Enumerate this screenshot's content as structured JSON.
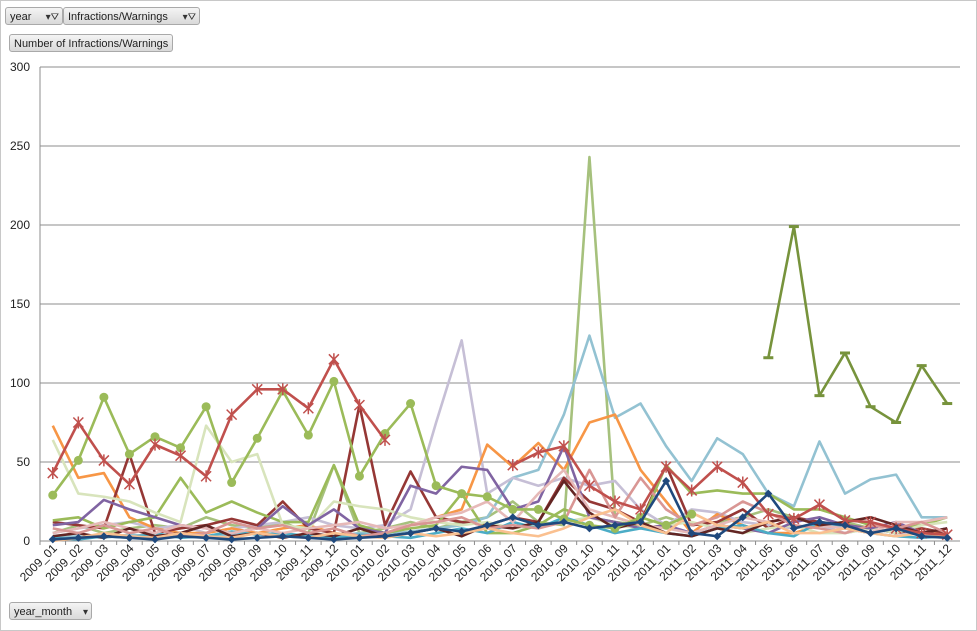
{
  "filters": {
    "year_label": "year",
    "series_field_label": "Infractions/Warnings",
    "measure_label": "Number of Infractions/Warnings",
    "axis_field_label": "year_month"
  },
  "chart_data": {
    "type": "line",
    "title": "",
    "xlabel": "",
    "ylabel": "",
    "ylim": [
      0,
      300
    ],
    "yticks": [
      0,
      50,
      100,
      150,
      200,
      250,
      300
    ],
    "grid": true,
    "categories": [
      "2009_01",
      "2009_02",
      "2009_03",
      "2009_04",
      "2009_05",
      "2009_06",
      "2009_07",
      "2009_08",
      "2009_09",
      "2009_10",
      "2009_11",
      "2009_12",
      "2010_01",
      "2010_02",
      "2010_03",
      "2010_04",
      "2010_05",
      "2010_06",
      "2010_07",
      "2010_08",
      "2010_09",
      "2010_10",
      "2010_11",
      "2010_12",
      "2011_01",
      "2011_02",
      "2011_03",
      "2011_04",
      "2011_05",
      "2011_06",
      "2011_07",
      "2011_08",
      "2011_09",
      "2011_10",
      "2011_11",
      "2011_12"
    ],
    "series": [
      {
        "color": "#9bbb59",
        "marker": "circle",
        "values": [
          29,
          51,
          91,
          55,
          66,
          59,
          85,
          37,
          65,
          95,
          67,
          101,
          41,
          68,
          87,
          35,
          30,
          28,
          20,
          20,
          14,
          10,
          8,
          15,
          10,
          17,
          null,
          null,
          null,
          null,
          null,
          null,
          null,
          null,
          null,
          null
        ]
      },
      {
        "color": "#c0504d",
        "marker": "star",
        "values": [
          43,
          75,
          51,
          36,
          61,
          54,
          41,
          80,
          96,
          96,
          84,
          115,
          86,
          64,
          null,
          null,
          null,
          null,
          null,
          null,
          null,
          null,
          null,
          null,
          null,
          null,
          null,
          null,
          null,
          null,
          null,
          null,
          null,
          null,
          null,
          null
        ]
      },
      {
        "color": "#c0504d",
        "marker": "star",
        "values": [
          null,
          null,
          null,
          null,
          null,
          null,
          null,
          null,
          null,
          null,
          null,
          null,
          null,
          null,
          null,
          null,
          null,
          null,
          48,
          56,
          60,
          35,
          25,
          20,
          47,
          32,
          47,
          37,
          17,
          14,
          23,
          13,
          12,
          8,
          5,
          4
        ]
      },
      {
        "color": "#77933c",
        "marker": "dash",
        "values": [
          null,
          null,
          null,
          null,
          null,
          null,
          null,
          null,
          null,
          null,
          null,
          null,
          null,
          null,
          null,
          null,
          null,
          null,
          null,
          null,
          null,
          null,
          null,
          null,
          null,
          null,
          null,
          null,
          116,
          199,
          92,
          119,
          85,
          75,
          111,
          87
        ]
      },
      {
        "color": "#a6c17d",
        "marker": "none",
        "values": [
          5,
          10,
          5,
          8,
          10,
          8,
          15,
          10,
          8,
          12,
          5,
          48,
          5,
          8,
          12,
          8,
          12,
          15,
          25,
          12,
          10,
          243,
          15,
          10,
          15,
          10,
          12,
          15,
          20,
          15,
          10,
          12,
          8,
          5,
          8,
          5
        ]
      },
      {
        "color": "#93c2d2",
        "marker": "none",
        "values": [
          2,
          3,
          2,
          4,
          3,
          5,
          3,
          4,
          5,
          3,
          4,
          3,
          5,
          4,
          6,
          8,
          10,
          15,
          40,
          45,
          80,
          130,
          78,
          87,
          60,
          38,
          65,
          55,
          30,
          22,
          63,
          30,
          39,
          42,
          15,
          15
        ]
      },
      {
        "color": "#c6bfd6",
        "marker": "none",
        "values": [
          5,
          8,
          10,
          12,
          8,
          10,
          5,
          8,
          10,
          12,
          15,
          10,
          8,
          10,
          20,
          75,
          127,
          30,
          40,
          35,
          40,
          35,
          38,
          20,
          10,
          20,
          18,
          12,
          10,
          8,
          10,
          5,
          8,
          5,
          5,
          8
        ]
      },
      {
        "color": "#f79646",
        "marker": "none",
        "values": [
          73,
          40,
          43,
          15,
          8,
          5,
          5,
          8,
          5,
          8,
          10,
          5,
          2,
          5,
          10,
          15,
          20,
          61,
          47,
          62,
          45,
          75,
          80,
          45,
          25,
          5,
          17,
          10,
          5,
          5,
          10,
          8,
          5,
          8,
          5,
          5
        ]
      },
      {
        "color": "#953735",
        "marker": "none",
        "values": [
          12,
          10,
          8,
          55,
          5,
          8,
          10,
          14,
          10,
          25,
          8,
          5,
          86,
          10,
          44,
          15,
          12,
          10,
          15,
          12,
          40,
          25,
          20,
          12,
          48,
          10,
          12,
          20,
          8,
          15,
          12,
          10,
          8,
          5,
          8,
          5
        ]
      },
      {
        "color": "#9bbb59",
        "marker": "none",
        "values": [
          13,
          15,
          8,
          12,
          15,
          40,
          18,
          25,
          18,
          12,
          12,
          48,
          10,
          5,
          8,
          10,
          30,
          5,
          5,
          10,
          20,
          15,
          12,
          10,
          48,
          30,
          32,
          30,
          30,
          20,
          20,
          15,
          10,
          8,
          10,
          15
        ]
      },
      {
        "color": "#d8e4bc",
        "marker": "none",
        "values": [
          64,
          30,
          28,
          25,
          18,
          12,
          73,
          50,
          55,
          10,
          8,
          25,
          22,
          20,
          15,
          12,
          10,
          12,
          8,
          10,
          12,
          15,
          10,
          8,
          10,
          12,
          8,
          5,
          8,
          10,
          5,
          5,
          8,
          5,
          10,
          12
        ]
      },
      {
        "color": "#8064a2",
        "marker": "none",
        "values": [
          10,
          12,
          26,
          20,
          15,
          10,
          8,
          5,
          8,
          22,
          10,
          20,
          8,
          5,
          35,
          30,
          47,
          45,
          20,
          25,
          60,
          15,
          12,
          8,
          10,
          5,
          10,
          8,
          5,
          12,
          15,
          10,
          8,
          12,
          5,
          8
        ]
      },
      {
        "color": "#1f497d",
        "marker": "diamond",
        "values": [
          1,
          2,
          3,
          2,
          1,
          3,
          2,
          1,
          2,
          3,
          2,
          1,
          2,
          3,
          5,
          8,
          6,
          10,
          15,
          10,
          12,
          8,
          10,
          12,
          38,
          5,
          3,
          15,
          30,
          8,
          12,
          10,
          5,
          8,
          3,
          2
        ]
      },
      {
        "color": "#4bacc6",
        "marker": "none",
        "values": [
          2,
          1,
          3,
          2,
          5,
          2,
          3,
          6,
          4,
          5,
          3,
          2,
          4,
          3,
          2,
          5,
          8,
          5,
          12,
          8,
          15,
          10,
          5,
          8,
          5,
          3,
          8,
          10,
          5,
          3,
          12,
          8,
          5,
          3,
          2,
          3
        ]
      },
      {
        "color": "#e6b9b8",
        "marker": "none",
        "values": [
          5,
          8,
          12,
          8,
          5,
          10,
          8,
          5,
          8,
          5,
          8,
          10,
          12,
          8,
          10,
          15,
          18,
          25,
          12,
          30,
          45,
          20,
          15,
          10,
          8,
          5,
          10,
          15,
          12,
          15,
          10,
          8,
          5,
          12,
          12,
          15
        ]
      },
      {
        "color": "#632523",
        "marker": "none",
        "values": [
          3,
          5,
          2,
          8,
          3,
          5,
          10,
          3,
          5,
          2,
          5,
          3,
          8,
          3,
          5,
          8,
          3,
          10,
          8,
          12,
          38,
          18,
          8,
          12,
          5,
          3,
          8,
          5,
          12,
          15,
          10,
          12,
          15,
          10,
          5,
          8
        ]
      },
      {
        "color": "#d99694",
        "marker": "none",
        "values": [
          8,
          5,
          10,
          5,
          8,
          3,
          5,
          12,
          8,
          10,
          5,
          8,
          3,
          5,
          10,
          12,
          15,
          8,
          10,
          8,
          12,
          45,
          15,
          40,
          20,
          10,
          15,
          25,
          18,
          10,
          8,
          5,
          10,
          8,
          12,
          5
        ]
      },
      {
        "color": "#fac090",
        "marker": "none",
        "values": [
          0,
          2,
          5,
          3,
          2,
          5,
          3,
          2,
          5,
          3,
          2,
          5,
          3,
          2,
          5,
          3,
          5,
          8,
          5,
          3,
          8,
          15,
          20,
          10,
          5,
          18,
          10,
          8,
          12,
          5,
          5,
          8,
          5,
          3,
          5,
          3
        ]
      }
    ]
  }
}
